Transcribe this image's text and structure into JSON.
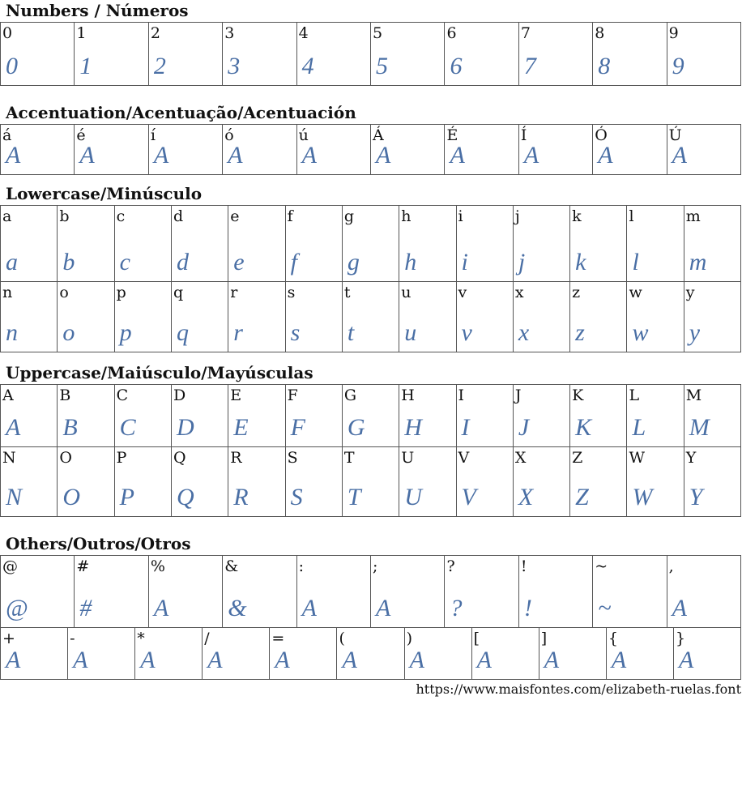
{
  "sections": [
    {
      "title": "Numbers / Números",
      "rows": [
        [
          {
            "char": "0",
            "glyph": "0"
          },
          {
            "char": "1",
            "glyph": "1"
          },
          {
            "char": "2",
            "glyph": "2"
          },
          {
            "char": "3",
            "glyph": "3"
          },
          {
            "char": "4",
            "glyph": "4"
          },
          {
            "char": "5",
            "glyph": "5"
          },
          {
            "char": "6",
            "glyph": "6"
          },
          {
            "char": "7",
            "glyph": "7"
          },
          {
            "char": "8",
            "glyph": "8"
          },
          {
            "char": "9",
            "glyph": "9"
          }
        ]
      ]
    },
    {
      "title": "Accentuation/Acentuação/Acentuación",
      "rows": [
        [
          {
            "char": "á",
            "glyph": "A"
          },
          {
            "char": "é",
            "glyph": "A"
          },
          {
            "char": "í",
            "glyph": "A"
          },
          {
            "char": "ó",
            "glyph": "A"
          },
          {
            "char": "ú",
            "glyph": "A"
          },
          {
            "char": "Á",
            "glyph": "A"
          },
          {
            "char": "É",
            "glyph": "A"
          },
          {
            "char": "Í",
            "glyph": "A"
          },
          {
            "char": "Ó",
            "glyph": "A"
          },
          {
            "char": "Ú",
            "glyph": "A"
          }
        ]
      ]
    },
    {
      "title": "Lowercase/Minúsculo",
      "rows": [
        [
          {
            "char": "a",
            "glyph": "a"
          },
          {
            "char": "b",
            "glyph": "b"
          },
          {
            "char": "c",
            "glyph": "c"
          },
          {
            "char": "d",
            "glyph": "d"
          },
          {
            "char": "e",
            "glyph": "e"
          },
          {
            "char": "f",
            "glyph": "f"
          },
          {
            "char": "g",
            "glyph": "g"
          },
          {
            "char": "h",
            "glyph": "h"
          },
          {
            "char": "i",
            "glyph": "i"
          },
          {
            "char": "j",
            "glyph": "j"
          },
          {
            "char": "k",
            "glyph": "k"
          },
          {
            "char": "l",
            "glyph": "l"
          },
          {
            "char": "m",
            "glyph": "m"
          }
        ],
        [
          {
            "char": "n",
            "glyph": "n"
          },
          {
            "char": "o",
            "glyph": "o"
          },
          {
            "char": "p",
            "glyph": "p"
          },
          {
            "char": "q",
            "glyph": "q"
          },
          {
            "char": "r",
            "glyph": "r"
          },
          {
            "char": "s",
            "glyph": "s"
          },
          {
            "char": "t",
            "glyph": "t"
          },
          {
            "char": "u",
            "glyph": "u"
          },
          {
            "char": "v",
            "glyph": "v"
          },
          {
            "char": "x",
            "glyph": "x"
          },
          {
            "char": "z",
            "glyph": "z"
          },
          {
            "char": "w",
            "glyph": "w"
          },
          {
            "char": "y",
            "glyph": "y"
          }
        ]
      ]
    },
    {
      "title": "Uppercase/Maiúsculo/Mayúsculas",
      "rows": [
        [
          {
            "char": "A",
            "glyph": "A"
          },
          {
            "char": "B",
            "glyph": "B"
          },
          {
            "char": "C",
            "glyph": "C"
          },
          {
            "char": "D",
            "glyph": "D"
          },
          {
            "char": "E",
            "glyph": "E"
          },
          {
            "char": "F",
            "glyph": "F"
          },
          {
            "char": "G",
            "glyph": "G"
          },
          {
            "char": "H",
            "glyph": "H"
          },
          {
            "char": "I",
            "glyph": "I"
          },
          {
            "char": "J",
            "glyph": "J"
          },
          {
            "char": "K",
            "glyph": "K"
          },
          {
            "char": "L",
            "glyph": "L"
          },
          {
            "char": "M",
            "glyph": "M"
          }
        ],
        [
          {
            "char": "N",
            "glyph": "N"
          },
          {
            "char": "O",
            "glyph": "O"
          },
          {
            "char": "P",
            "glyph": "P"
          },
          {
            "char": "Q",
            "glyph": "Q"
          },
          {
            "char": "R",
            "glyph": "R"
          },
          {
            "char": "S",
            "glyph": "S"
          },
          {
            "char": "T",
            "glyph": "T"
          },
          {
            "char": "U",
            "glyph": "U"
          },
          {
            "char": "V",
            "glyph": "V"
          },
          {
            "char": "X",
            "glyph": "X"
          },
          {
            "char": "Z",
            "glyph": "Z"
          },
          {
            "char": "W",
            "glyph": "W"
          },
          {
            "char": "Y",
            "glyph": "Y"
          }
        ]
      ]
    },
    {
      "title": "Others/Outros/Otros",
      "rows": [
        [
          {
            "char": "@",
            "glyph": "@"
          },
          {
            "char": "#",
            "glyph": "#"
          },
          {
            "char": "%",
            "glyph": "A"
          },
          {
            "char": "&",
            "glyph": "&"
          },
          {
            "char": ":",
            "glyph": "A"
          },
          {
            "char": ";",
            "glyph": "A"
          },
          {
            "char": "?",
            "glyph": "?"
          },
          {
            "char": "!",
            "glyph": "!"
          },
          {
            "char": "~",
            "glyph": "~"
          },
          {
            "char": ",",
            "glyph": "A"
          }
        ],
        [
          {
            "char": "+",
            "glyph": "A"
          },
          {
            "char": "-",
            "glyph": "A"
          },
          {
            "char": "*",
            "glyph": "A"
          },
          {
            "char": "/",
            "glyph": "A"
          },
          {
            "char": "=",
            "glyph": "A"
          },
          {
            "char": "(",
            "glyph": "A"
          },
          {
            "char": ")",
            "glyph": "A"
          },
          {
            "char": "[",
            "glyph": "A"
          },
          {
            "char": "]",
            "glyph": "A"
          },
          {
            "char": "{",
            "glyph": "A"
          },
          {
            "char": "}",
            "glyph": "A"
          }
        ]
      ]
    }
  ],
  "footer": "https://www.maisfontes.com/elizabeth-ruelas.font"
}
